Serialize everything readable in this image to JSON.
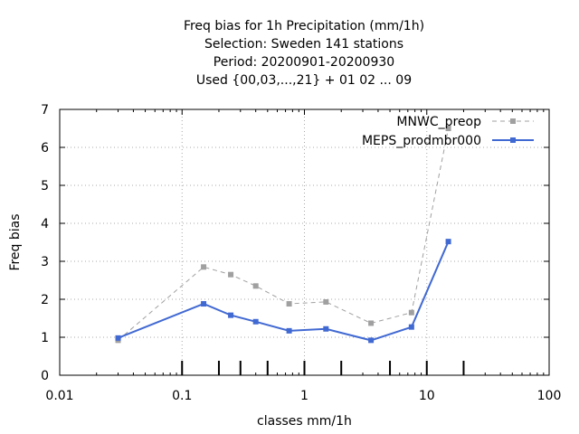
{
  "chart_data": {
    "type": "line",
    "title_lines": [
      "Freq bias  for 1h Precipitation (mm/1h)",
      "Selection: Sweden    141 stations",
      "Period: 20200901-20200930",
      "Used {00,03,...,21} + 01 02 ... 09"
    ],
    "xlabel": "classes mm/1h",
    "ylabel": "Freq bias",
    "xscale": "log",
    "xlim": [
      0.01,
      100
    ],
    "ylim": [
      0,
      7
    ],
    "xticks": [
      0.01,
      0.1,
      1,
      10,
      100
    ],
    "xtick_labels": [
      "0.01",
      "0.1",
      "1",
      "10",
      "100"
    ],
    "yticks": [
      0,
      1,
      2,
      3,
      4,
      5,
      6,
      7
    ],
    "ytick_labels": [
      "0",
      "1",
      "2",
      "3",
      "4",
      "5",
      "6",
      "7"
    ],
    "class_limits": [
      0.1,
      0.2,
      0.3,
      0.5,
      1,
      2,
      5,
      10,
      20
    ],
    "grid": true,
    "legend_position": "top-right",
    "series": [
      {
        "name": "MNWC_preop",
        "color": "#a0a0a0",
        "dash": true,
        "x": [
          0.03,
          0.15,
          0.25,
          0.4,
          0.75,
          1.5,
          3.5,
          7.5,
          15
        ],
        "y": [
          0.92,
          2.85,
          2.65,
          2.35,
          1.88,
          1.93,
          1.37,
          1.65,
          6.5
        ]
      },
      {
        "name": "MEPS_prodmbr000",
        "color": "#4169d2",
        "dash": false,
        "x": [
          0.03,
          0.15,
          0.25,
          0.4,
          0.75,
          1.5,
          3.5,
          7.5,
          15
        ],
        "y": [
          0.98,
          1.88,
          1.58,
          1.41,
          1.17,
          1.22,
          0.92,
          1.27,
          3.52
        ]
      }
    ]
  }
}
